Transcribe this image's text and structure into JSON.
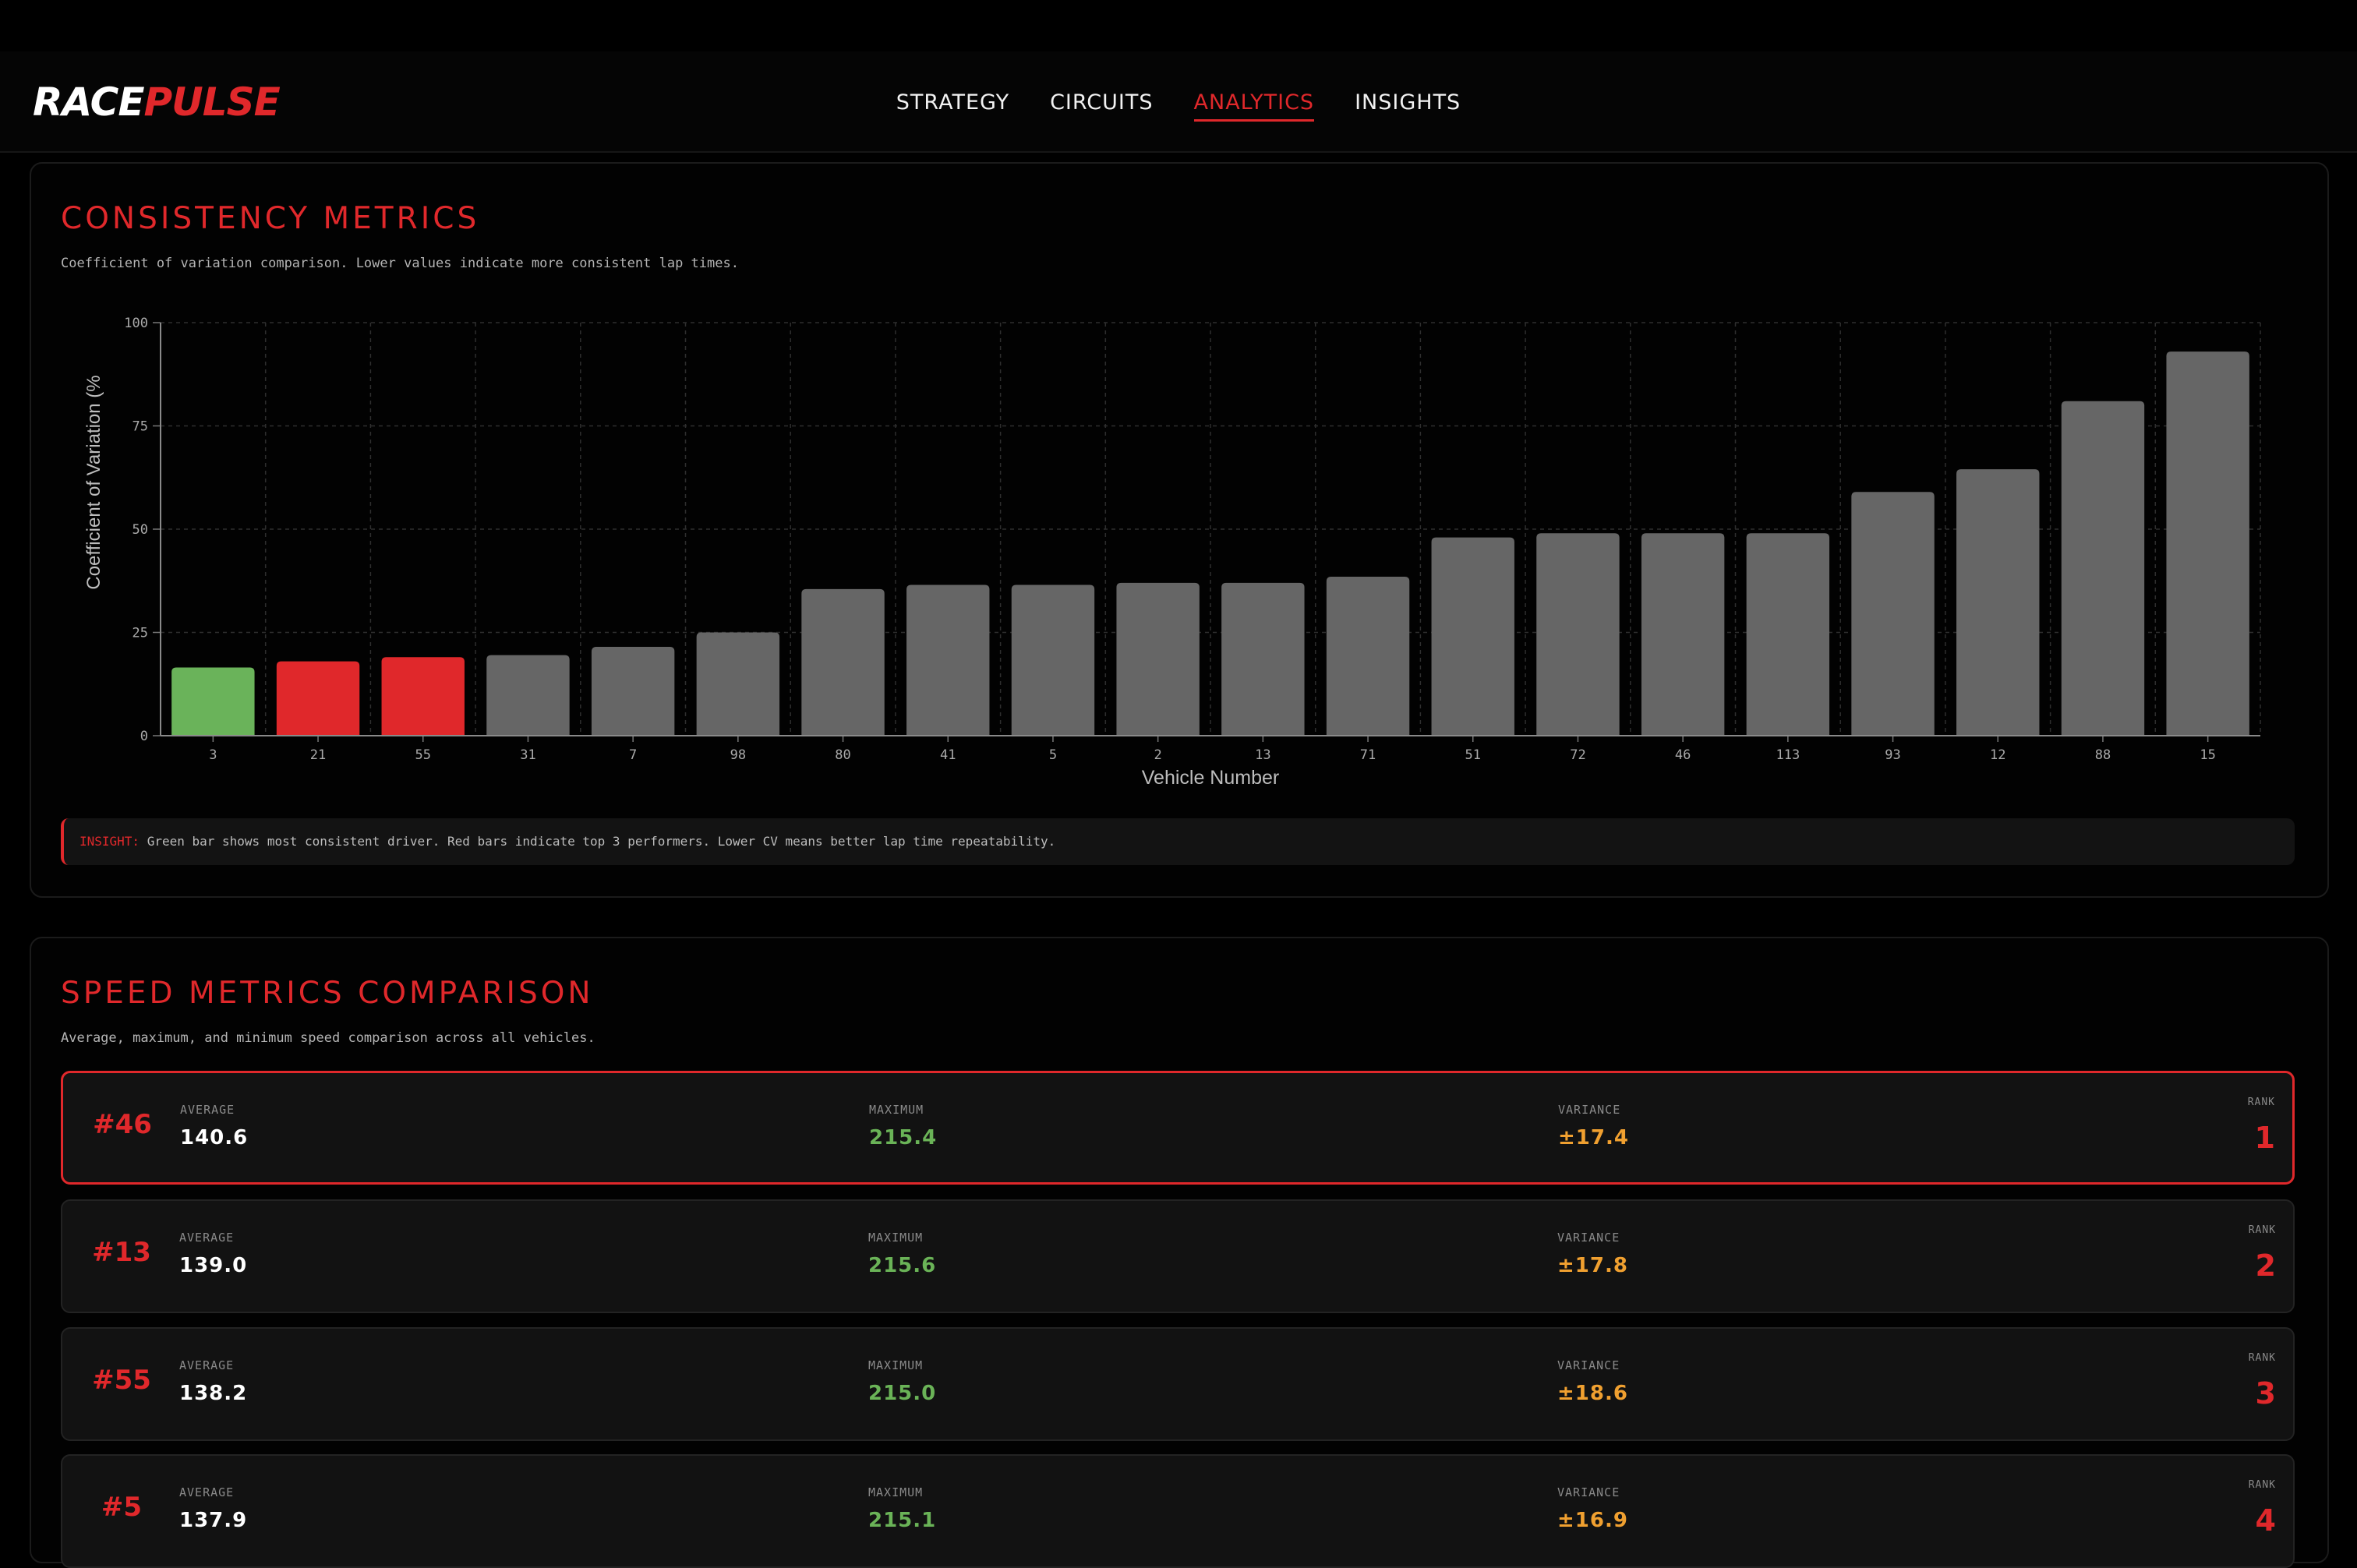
{
  "header": {
    "logo_part1": "RACE",
    "logo_part2": "PULSE",
    "nav": [
      {
        "label": "STRATEGY",
        "active": false
      },
      {
        "label": "CIRCUITS",
        "active": false
      },
      {
        "label": "ANALYTICS",
        "active": true
      },
      {
        "label": "INSIGHTS",
        "active": false
      }
    ]
  },
  "consistency": {
    "title": "CONSISTENCY METRICS",
    "subtitle": "Coefficient of variation comparison. Lower values indicate more consistent lap times.",
    "insight_label": "INSIGHT:",
    "insight_text": " Green bar shows most consistent driver. Red bars indicate top 3 performers. Lower CV means better lap time repeatability."
  },
  "chart_data": {
    "type": "bar",
    "xlabel": "Vehicle Number",
    "ylabel": "Coefficient of Variation (%",
    "ylim": [
      0,
      100
    ],
    "yticks": [
      0,
      25,
      50,
      75,
      100
    ],
    "grid": true,
    "categories": [
      "3",
      "21",
      "55",
      "31",
      "7",
      "98",
      "80",
      "41",
      "5",
      "2",
      "13",
      "71",
      "51",
      "72",
      "46",
      "113",
      "93",
      "12",
      "88",
      "15"
    ],
    "values": [
      16.5,
      18,
      19,
      19.5,
      21.5,
      25,
      35.5,
      36.5,
      36.5,
      37,
      37,
      38.5,
      48,
      49,
      49,
      49,
      59,
      64.5,
      81,
      93
    ],
    "colors": [
      "#6ab35a",
      "#e0282b",
      "#e0282b",
      "#666666",
      "#666666",
      "#666666",
      "#666666",
      "#666666",
      "#666666",
      "#666666",
      "#666666",
      "#666666",
      "#666666",
      "#666666",
      "#666666",
      "#666666",
      "#666666",
      "#666666",
      "#666666",
      "#666666"
    ]
  },
  "speed": {
    "title": "SPEED METRICS COMPARISON",
    "subtitle": "Average, maximum, and minimum speed comparison across all vehicles.",
    "labels": {
      "average": "AVERAGE",
      "maximum": "MAXIMUM",
      "variance": "VARIANCE",
      "rank": "RANK"
    },
    "rows": [
      {
        "vehicle": "#46",
        "average": "140.6",
        "maximum": "215.4",
        "variance": "±17.4",
        "rank": "1"
      },
      {
        "vehicle": "#13",
        "average": "139.0",
        "maximum": "215.6",
        "variance": "±17.8",
        "rank": "2"
      },
      {
        "vehicle": "#55",
        "average": "138.2",
        "maximum": "215.0",
        "variance": "±18.6",
        "rank": "3"
      },
      {
        "vehicle": "#5",
        "average": "137.9",
        "maximum": "215.1",
        "variance": "±16.9",
        "rank": "4"
      }
    ]
  },
  "colors": {
    "accent": "#e0282b",
    "positive": "#6ab357",
    "warning": "#f0a030",
    "bar_default": "#666666"
  }
}
